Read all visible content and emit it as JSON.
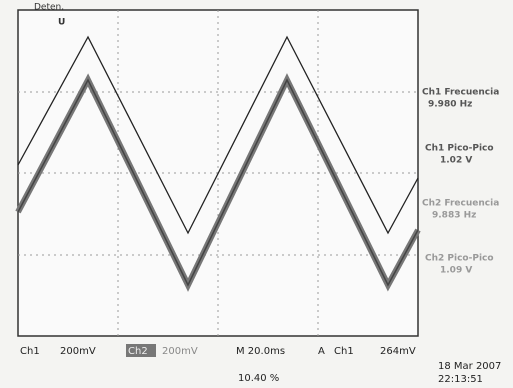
{
  "screen": {
    "status": "Deten.",
    "trigger_marker": "U"
  },
  "measurements": [
    {
      "label": "Ch1 Frecuencia",
      "value": "9.980 Hz"
    },
    {
      "label": "Ch1 Pico-Pico",
      "value": "1.02 V"
    },
    {
      "label": "Ch2 Frecuencia",
      "value": "9.883 Hz"
    },
    {
      "label": "Ch2 Pico-Pico",
      "value": "1.09 V"
    }
  ],
  "bottom_bar": {
    "ch1": "Ch1",
    "ch1_scale": "200mV",
    "ch2": "Ch2",
    "ch2_scale": "200mV",
    "timebase": "M 20.0ms",
    "trigger_mode": "A",
    "trigger_source": "Ch1",
    "trigger_level": "264mV"
  },
  "footer": {
    "position": "10.40 %",
    "date": "18 Mar 2007",
    "time": "22:13:51"
  }
}
